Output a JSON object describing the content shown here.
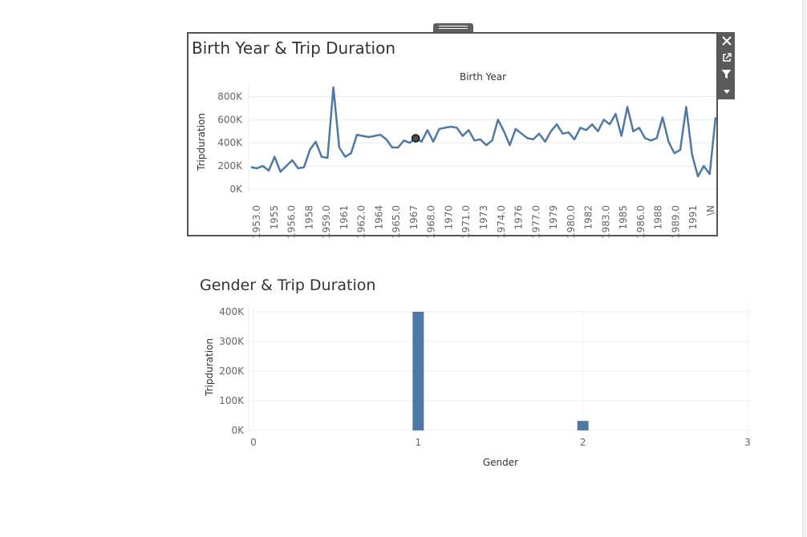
{
  "line_title": "Birth Year & Trip Duration",
  "bar_title": "Gender & Trip Duration",
  "toolbar": {
    "icons": [
      "close-icon",
      "popout-icon",
      "filter-icon",
      "more-options-icon"
    ]
  },
  "colors": {
    "series": "#4e79a7",
    "axis_text": "#666666",
    "grid": "#ececec"
  },
  "chart_data": [
    {
      "type": "line",
      "title": "Birth Year & Trip Duration",
      "xlabel": "Birth Year",
      "ylabel": "Tripduration",
      "y_ticks": [
        "800K",
        "600K",
        "400K",
        "200K",
        "0K"
      ],
      "ylim": [
        0,
        900000
      ],
      "x_labels": [
        "1953.0",
        "1955",
        "1956.0",
        "1958",
        "1959.0",
        "1961",
        "1962.0",
        "1964",
        "1965.0",
        "1967",
        "1968.0",
        "1970",
        "1971.0",
        "1973",
        "1974.0",
        "1976",
        "1977.0",
        "1979",
        "1980.0",
        "1982",
        "1983.0",
        "1985",
        "1986.0",
        "1988",
        "1989.0",
        "1991",
        "\\N"
      ],
      "values": [
        190000,
        180000,
        200000,
        160000,
        280000,
        150000,
        200000,
        250000,
        180000,
        190000,
        340000,
        410000,
        280000,
        270000,
        880000,
        360000,
        280000,
        310000,
        470000,
        460000,
        450000,
        460000,
        470000,
        430000,
        360000,
        360000,
        420000,
        400000,
        440000,
        410000,
        510000,
        410000,
        520000,
        530000,
        540000,
        530000,
        460000,
        510000,
        420000,
        430000,
        380000,
        420000,
        600000,
        500000,
        380000,
        520000,
        480000,
        440000,
        430000,
        480000,
        410000,
        500000,
        560000,
        480000,
        490000,
        430000,
        530000,
        510000,
        560000,
        500000,
        600000,
        560000,
        650000,
        460000,
        710000,
        500000,
        530000,
        440000,
        420000,
        440000,
        620000,
        410000,
        310000,
        340000,
        710000,
        300000,
        110000,
        200000,
        130000,
        620000
      ],
      "highlight_index": 28,
      "grid": true
    },
    {
      "type": "bar",
      "title": "Gender & Trip Duration",
      "xlabel": "Gender",
      "ylabel": "Tripduration",
      "x_ticks": [
        "0",
        "1",
        "2",
        "3"
      ],
      "y_ticks": [
        "400K",
        "300K",
        "200K",
        "100K",
        "0K"
      ],
      "xlim": [
        0,
        3
      ],
      "ylim": [
        0,
        400000
      ],
      "categories": [
        1,
        2
      ],
      "values": [
        405000,
        32000
      ],
      "grid": true
    }
  ]
}
